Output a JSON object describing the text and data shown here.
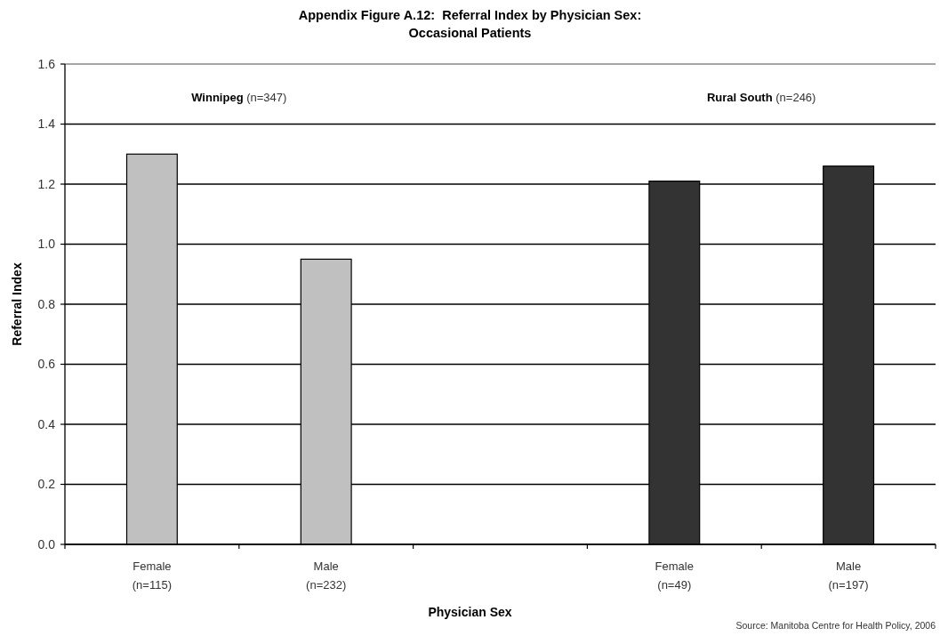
{
  "chart_data": {
    "type": "bar",
    "title": "Appendix Figure A.12:  Referral Index by Physician Sex:\nOccasional Patients",
    "xlabel": "Physician Sex",
    "ylabel": "Referral Index",
    "categories": [
      "Female\n(n=115)",
      "Male\n(n=232)",
      null,
      "Female\n(n=49)",
      "Male\n(n=197)"
    ],
    "values": [
      1.3,
      0.95,
      null,
      1.21,
      1.26
    ],
    "colors": [
      "#c0c0c0",
      "#c0c0c0",
      null,
      "#333333",
      "#333333"
    ],
    "ylim": [
      0,
      1.6
    ],
    "yticks": [
      {
        "value": 0,
        "label": "0.0"
      },
      0.2,
      0.4,
      0.6,
      0.8,
      {
        "value": 1,
        "label": "1.0"
      },
      1.2,
      1.4,
      1.6
    ],
    "grid": "y",
    "annotations": [
      "Winnipeg (n=347)",
      "Rural South (n=246)",
      "Source: Manitoba Centre for Health Policy, 2006"
    ]
  }
}
